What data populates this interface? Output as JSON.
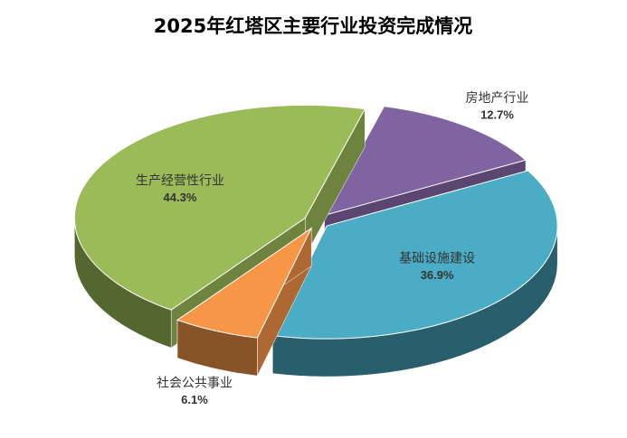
{
  "chart_data": {
    "type": "pie3d",
    "title": "2025年红塔区主要行业投资完成情况",
    "categories": [
      "房地产行业",
      "基础设施建设",
      "社会公共事业",
      "生产经营性行业"
    ],
    "values": [
      12.7,
      36.9,
      6.1,
      44.3
    ],
    "value_labels": [
      "12.7%",
      "36.9%",
      "6.1%",
      "44.3%"
    ],
    "colors": [
      "#8064a2",
      "#4bacc6",
      "#f79646",
      "#9bbb59"
    ]
  }
}
